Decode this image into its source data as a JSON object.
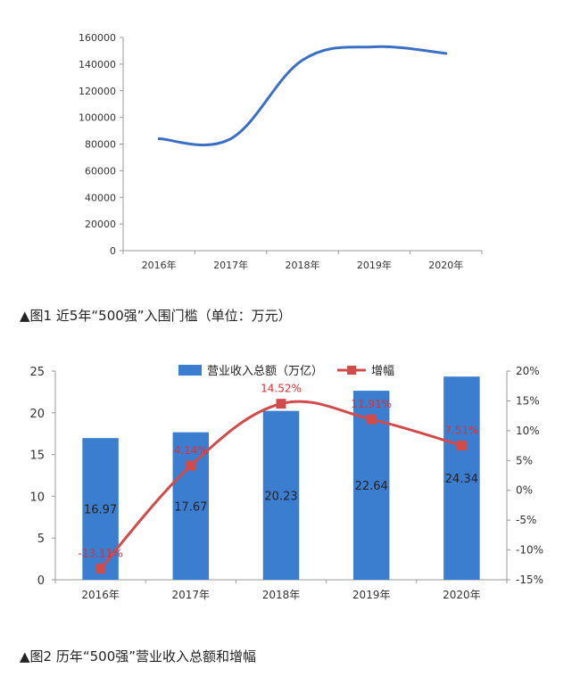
{
  "chart_data": [
    {
      "type": "line",
      "categories": [
        "2016年",
        "2017年",
        "2018年",
        "2019年",
        "2020年"
      ],
      "series": [
        {
          "values": [
            84000,
            84000,
            143000,
            153000,
            148000
          ],
          "color": "#3a6fc4"
        }
      ],
      "yticks": [
        "0",
        "20000",
        "40000",
        "60000",
        "80000",
        "100000",
        "120000",
        "140000",
        "160000"
      ],
      "ylim": [
        0,
        160000
      ],
      "smooth": true,
      "grid": false
    },
    {
      "type": "bar",
      "categories": [
        "2016年",
        "2017年",
        "2018年",
        "2019年",
        "2020年"
      ],
      "series": [
        {
          "name": "营业收入总额（万亿）",
          "axis": "left",
          "values": [
            16.97,
            17.67,
            20.23,
            22.64,
            24.34
          ],
          "labels": [
            "16.97",
            "17.67",
            "20.23",
            "22.64",
            "24.34"
          ],
          "color": "#3b7ed0"
        },
        {
          "name": "增幅",
          "type": "line",
          "axis": "right",
          "values": [
            -13.11,
            4.14,
            14.52,
            11.91,
            7.51
          ],
          "labels": [
            "-13.11%",
            "4.14%",
            "14.52%",
            "11.91%",
            "7.51%"
          ],
          "color": "#d24b4b",
          "label_color": "#e03030"
        }
      ],
      "yleft_ticks": [
        "0",
        "5",
        "10",
        "15",
        "20",
        "25"
      ],
      "yleft_lim": [
        0,
        25
      ],
      "yright_ticks": [
        "-15%",
        "-10%",
        "-5%",
        "0%",
        "5%",
        "10%",
        "15%",
        "20%"
      ],
      "yright_lim": [
        -15,
        20
      ],
      "legend_position": "top",
      "grid": false
    }
  ],
  "captions": {
    "fig1": "▲图1 近5年“500强”入围门槛（单位：万元）",
    "fig2": "▲图2 历年“500强”营业收入总额和增幅"
  }
}
